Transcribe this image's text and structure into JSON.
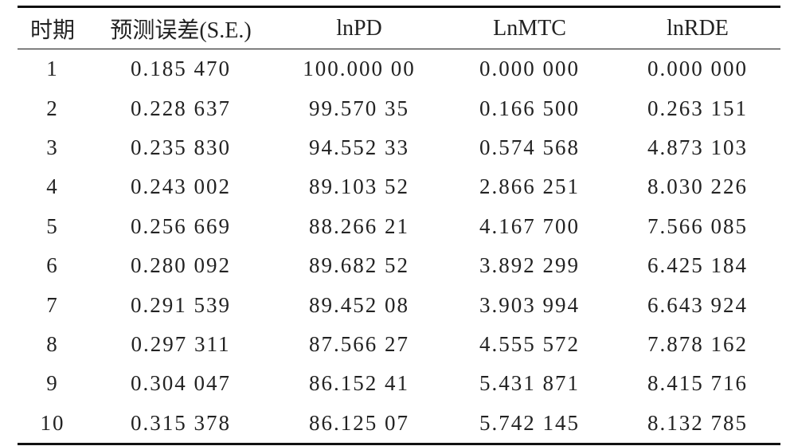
{
  "table": {
    "header": [
      "时期",
      "预测误差(S.E.)",
      "lnPD",
      "LnMTC",
      "lnRDE"
    ],
    "rows": [
      [
        "1",
        "0.185 470",
        "100.000 00",
        "0.000 000",
        "0.000 000"
      ],
      [
        "2",
        "0.228 637",
        "99.570 35",
        "0.166 500",
        "0.263 151"
      ],
      [
        "3",
        "0.235 830",
        "94.552 33",
        "0.574 568",
        "4.873 103"
      ],
      [
        "4",
        "0.243 002",
        "89.103 52",
        "2.866 251",
        "8.030 226"
      ],
      [
        "5",
        "0.256 669",
        "88.266 21",
        "4.167 700",
        "7.566 085"
      ],
      [
        "6",
        "0.280 092",
        "89.682 52",
        "3.892 299",
        "6.425 184"
      ],
      [
        "7",
        "0.291 539",
        "89.452 08",
        "3.903 994",
        "6.643 924"
      ],
      [
        "8",
        "0.297 311",
        "87.566 27",
        "4.555 572",
        "7.878 162"
      ],
      [
        "9",
        "0.304 047",
        "86.152 41",
        "5.431 871",
        "8.415 716"
      ],
      [
        "10",
        "0.315 378",
        "86.125 07",
        "5.742 145",
        "8.132 785"
      ]
    ]
  }
}
